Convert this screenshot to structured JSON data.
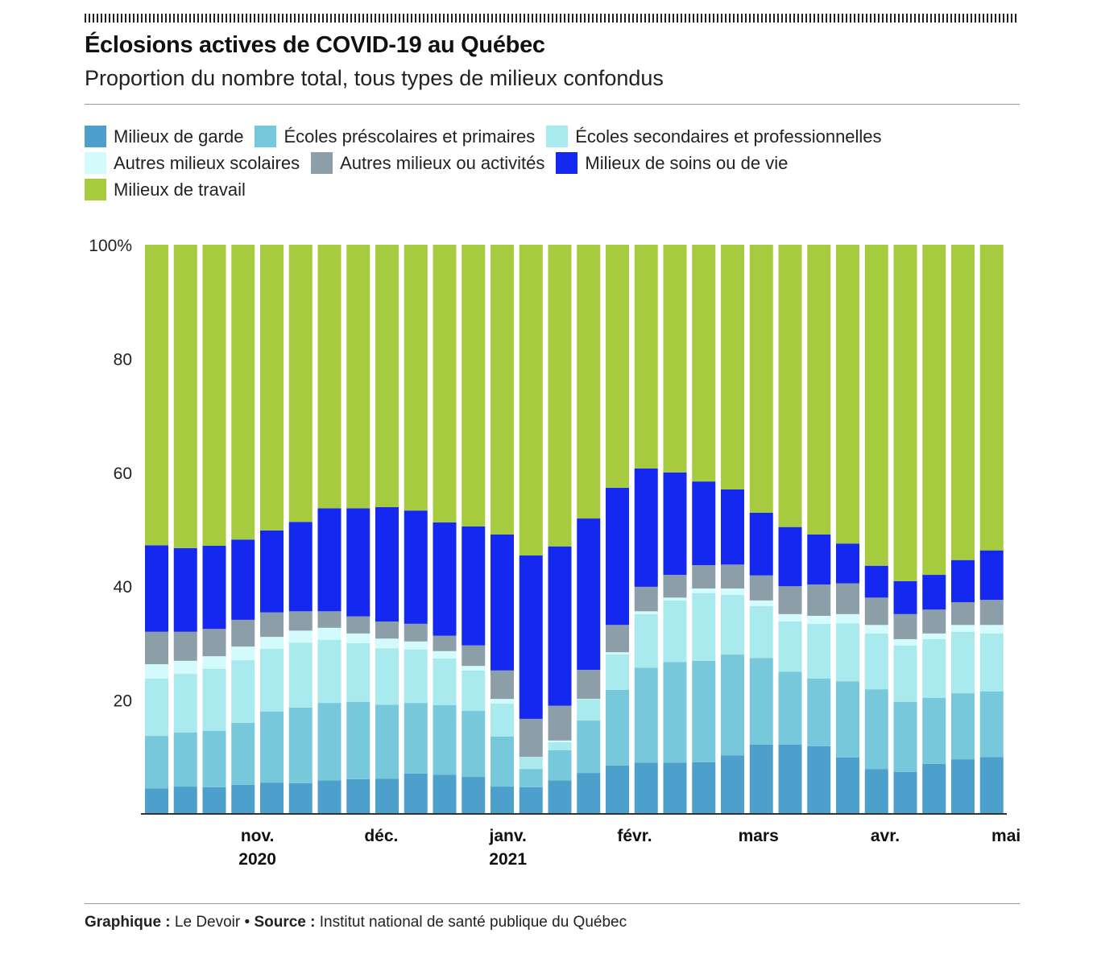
{
  "header": {
    "title": "Éclosions actives de COVID-19 au Québec",
    "subtitle": "Proportion du nombre total, tous types de milieux confondus"
  },
  "footer": {
    "graph_label": "Graphique :",
    "graph_value": "Le Devoir",
    "separator": "•",
    "source_label": "Source :",
    "source_value": "Institut national de santé publique du Québec"
  },
  "chart_data": {
    "type": "bar",
    "stacked": true,
    "title": "Éclosions actives de COVID-19 au Québec",
    "subtitle": "Proportion du nombre total, tous types de milieux confondus",
    "ylabel": "",
    "ylim": [
      0,
      100
    ],
    "y_ticks": [
      "100%",
      "80",
      "60",
      "40",
      "20"
    ],
    "y_tick_values": [
      100,
      80,
      60,
      40,
      20
    ],
    "x_ticks": [
      {
        "label": "nov.",
        "year": "2020",
        "index": 3.5
      },
      {
        "label": "déc.",
        "year": "",
        "index": 7.8
      },
      {
        "label": "janv.",
        "year": "2021",
        "index": 12.2
      },
      {
        "label": "févr.",
        "year": "",
        "index": 16.6
      },
      {
        "label": "mars",
        "year": "",
        "index": 20.9
      },
      {
        "label": "avr.",
        "year": "",
        "index": 25.3
      },
      {
        "label": "mai",
        "year": "",
        "index": 29.5
      }
    ],
    "legend_position": "top-left",
    "series": [
      {
        "name": "Milieux de garde",
        "color": "#4ea0cc",
        "values": [
          4.5,
          4.8,
          4.7,
          5.1,
          5.5,
          5.4,
          5.9,
          6.1,
          6.2,
          7.1,
          6.9,
          6.5,
          4.8,
          4.7,
          5.9,
          7.2,
          8.5,
          9.0,
          9.0,
          9.1,
          10.3,
          12.2,
          12.2,
          11.9,
          9.9,
          7.9,
          7.4,
          8.8,
          9.6,
          10.0
        ]
      },
      {
        "name": "Écoles préscolaires et primaires",
        "color": "#77c8da",
        "values": [
          9.2,
          9.5,
          9.9,
          10.9,
          12.5,
          13.3,
          13.6,
          13.6,
          13.0,
          12.4,
          12.2,
          11.6,
          8.8,
          3.2,
          5.3,
          9.2,
          13.3,
          16.7,
          17.7,
          17.8,
          17.7,
          15.2,
          12.8,
          11.9,
          13.4,
          14.0,
          12.3,
          11.6,
          11.6,
          11.5
        ]
      },
      {
        "name": "Écoles secondaires et professionnelles",
        "color": "#a8eaee",
        "values": [
          10.1,
          10.3,
          10.9,
          11.0,
          11.0,
          11.4,
          11.1,
          10.3,
          9.9,
          9.4,
          8.2,
          7.1,
          5.8,
          2.0,
          1.4,
          3.7,
          6.2,
          9.4,
          10.8,
          11.9,
          10.5,
          9.1,
          8.8,
          9.6,
          10.2,
          9.8,
          9.9,
          10.3,
          10.8,
          10.2
        ]
      },
      {
        "name": "Autres milieux scolaires",
        "color": "#d3fbfb",
        "values": [
          2.5,
          2.3,
          2.2,
          2.4,
          2.1,
          2.1,
          2.1,
          1.7,
          1.7,
          1.4,
          1.3,
          0.8,
          0.8,
          0.1,
          0.3,
          0.1,
          0.4,
          0.5,
          0.5,
          0.8,
          1.1,
          1.0,
          1.3,
          1.4,
          1.6,
          1.5,
          1.1,
          1.0,
          1.2,
          1.5
        ]
      },
      {
        "name": "Autres milieux ou activités",
        "color": "#8c9ea8",
        "values": [
          5.7,
          5.1,
          4.8,
          4.7,
          4.3,
          3.4,
          2.9,
          3.0,
          3.0,
          3.1,
          2.7,
          3.6,
          5.0,
          6.7,
          6.1,
          5.1,
          4.8,
          4.3,
          4.0,
          4.1,
          4.2,
          4.4,
          4.9,
          5.5,
          5.4,
          4.8,
          4.4,
          4.2,
          4.0,
          4.4
        ]
      },
      {
        "name": "Milieux de soins ou de vie",
        "color": "#1428f0",
        "values": [
          15.2,
          14.7,
          14.6,
          14.1,
          14.4,
          15.7,
          18.1,
          19.0,
          20.1,
          19.9,
          19.9,
          20.9,
          23.9,
          28.7,
          28.0,
          26.6,
          24.1,
          20.8,
          18.0,
          14.7,
          13.2,
          11.0,
          10.4,
          8.8,
          7.0,
          5.6,
          5.8,
          6.1,
          7.4,
          8.7
        ]
      },
      {
        "name": "Milieux de travail",
        "color": "#a6cb3e",
        "values": [
          52.8,
          53.3,
          52.9,
          51.8,
          50.2,
          48.7,
          46.3,
          46.3,
          46.1,
          46.7,
          48.8,
          49.5,
          50.9,
          54.6,
          53.0,
          48.1,
          42.7,
          39.3,
          40.0,
          41.6,
          43.0,
          47.1,
          49.6,
          50.9,
          52.5,
          56.4,
          59.1,
          58.0,
          55.4,
          53.7
        ]
      }
    ]
  }
}
